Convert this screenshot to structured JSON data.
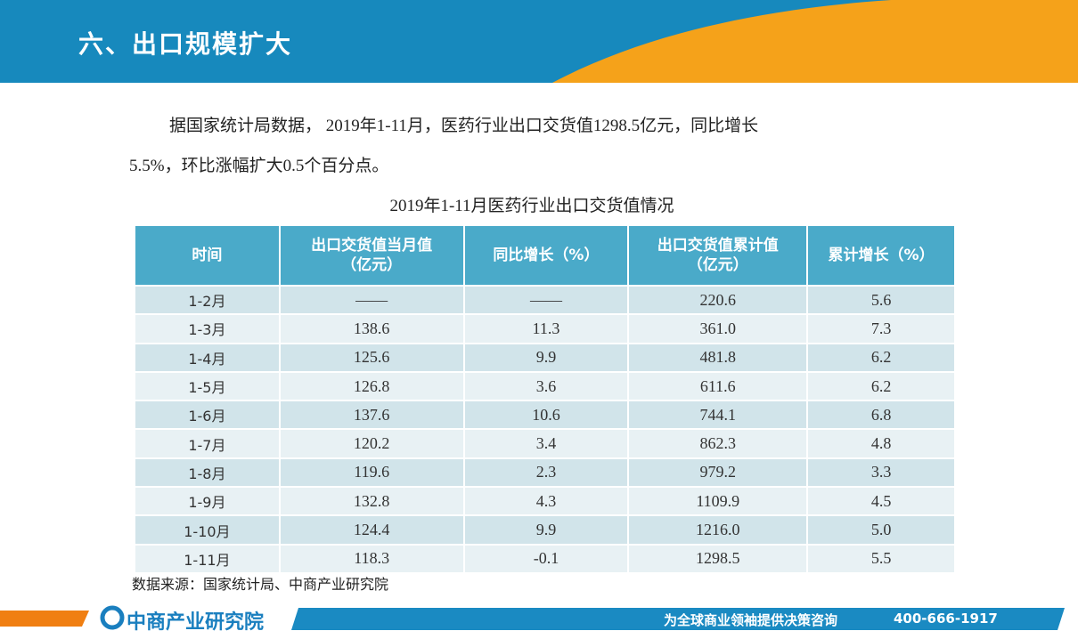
{
  "header": {
    "title": "六、出口规模扩大"
  },
  "paragraph": {
    "line1": "据国家统计局数据， 2019年1-11月，医药行业出口交货值1298.5亿元，同比增长",
    "line2": "5.5%，环比涨幅扩大0.5个百分点。"
  },
  "table": {
    "caption": "2019年1-11月医药行业出口交货值情况",
    "headers": [
      [
        "时间"
      ],
      [
        "出口交货值当月值",
        "（亿元）"
      ],
      [
        "同比增长（%）"
      ],
      [
        "出口交货值累计值",
        "（亿元）"
      ],
      [
        "累计增长（%）"
      ]
    ],
    "rows": [
      [
        "1-2月",
        "——",
        "——",
        "220.6",
        "5.6"
      ],
      [
        "1-3月",
        "138.6",
        "11.3",
        "361.0",
        "7.3"
      ],
      [
        "1-4月",
        "125.6",
        "9.9",
        "481.8",
        "6.2"
      ],
      [
        "1-5月",
        "126.8",
        "3.6",
        "611.6",
        "6.2"
      ],
      [
        "1-6月",
        "137.6",
        "10.6",
        "744.1",
        "6.8"
      ],
      [
        "1-7月",
        "120.2",
        "3.4",
        "862.3",
        "4.8"
      ],
      [
        "1-8月",
        "119.6",
        "2.3",
        "979.2",
        "3.3"
      ],
      [
        "1-9月",
        "132.8",
        "4.3",
        "1109.9",
        "4.5"
      ],
      [
        "1-10月",
        "124.4",
        "9.9",
        "1216.0",
        "5.0"
      ],
      [
        "1-11月",
        "118.3",
        "-0.1",
        "1298.5",
        "5.5"
      ]
    ]
  },
  "source": "数据来源：国家统计局、中商产业研究院",
  "footer": {
    "logo": "中商产业研究院",
    "slogan": "为全球商业领袖提供决策咨询",
    "phone": "400-666-1917"
  }
}
